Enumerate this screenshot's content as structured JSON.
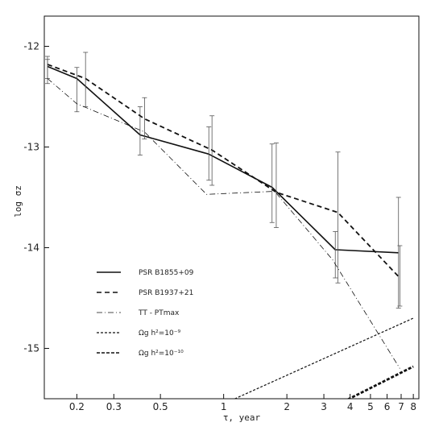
{
  "chart_data": {
    "type": "line",
    "title": "",
    "xlabel": "τ, year",
    "ylabel": "log σz",
    "x_scale": "log",
    "xlim": [
      0.14,
      8.5
    ],
    "ylim": [
      -15.5,
      -11.7
    ],
    "grid": false,
    "legend_placement": "bottom-left",
    "x_ticks": [
      {
        "value": 0.2,
        "label": "0.2"
      },
      {
        "value": 0.3,
        "label": "0.3"
      },
      {
        "value": 0.5,
        "label": "0.5"
      },
      {
        "value": 1,
        "label": "1"
      },
      {
        "value": 2,
        "label": "2"
      },
      {
        "value": 3,
        "label": "3"
      },
      {
        "value": 4,
        "label": "4"
      },
      {
        "value": 5,
        "label": "5"
      },
      {
        "value": 6,
        "label": "6"
      },
      {
        "value": 7,
        "label": "7"
      },
      {
        "value": 8,
        "label": "8"
      }
    ],
    "y_ticks": [
      {
        "value": -12,
        "label": "-12"
      },
      {
        "value": -13,
        "label": "-13"
      },
      {
        "value": -14,
        "label": "-14"
      },
      {
        "value": -15,
        "label": "-15"
      }
    ],
    "series": [
      {
        "name": "PSR B1855+09",
        "style": "solid",
        "x": [
          0.145,
          0.2,
          0.4,
          0.85,
          1.7,
          3.4,
          6.8
        ],
        "y": [
          -12.2,
          -12.32,
          -12.88,
          -13.07,
          -13.4,
          -14.02,
          -14.05
        ],
        "err_low": [
          -12.37,
          -12.65,
          -13.08,
          -13.33,
          -13.75,
          -14.3,
          -14.6
        ],
        "err_high": [
          -12.13,
          -12.21,
          -12.6,
          -12.8,
          -12.97,
          -13.84,
          -13.5
        ]
      },
      {
        "name": "PSR B1937+21",
        "style": "dashed",
        "x": [
          0.145,
          0.22,
          0.42,
          0.88,
          1.78,
          3.5,
          6.9
        ],
        "y": [
          -12.18,
          -12.32,
          -12.72,
          -13.03,
          -13.45,
          -13.65,
          -14.3
        ],
        "err_low": [
          -12.32,
          -12.6,
          -12.92,
          -13.38,
          -13.8,
          -14.35,
          -14.58
        ],
        "err_high": [
          -12.1,
          -12.06,
          -12.51,
          -12.69,
          -12.96,
          -13.05,
          -13.98
        ]
      },
      {
        "name": "TT - PTmax",
        "style": "dashdot",
        "x": [
          0.145,
          0.2,
          0.42,
          0.83,
          1.75,
          3.3,
          6.9
        ],
        "y": [
          -12.32,
          -12.57,
          -12.85,
          -13.47,
          -13.44,
          -14.12,
          -15.2
        ]
      },
      {
        "name": "Ωg h²=10⁻⁹",
        "style": "dotted",
        "x": [
          1.0,
          8.0
        ],
        "y": [
          -15.55,
          -14.7
        ]
      },
      {
        "name": "Ωg h²=10⁻¹⁰",
        "style": "thickdash",
        "x": [
          3.55,
          8.0
        ],
        "y": [
          -15.55,
          -15.18
        ]
      }
    ]
  }
}
